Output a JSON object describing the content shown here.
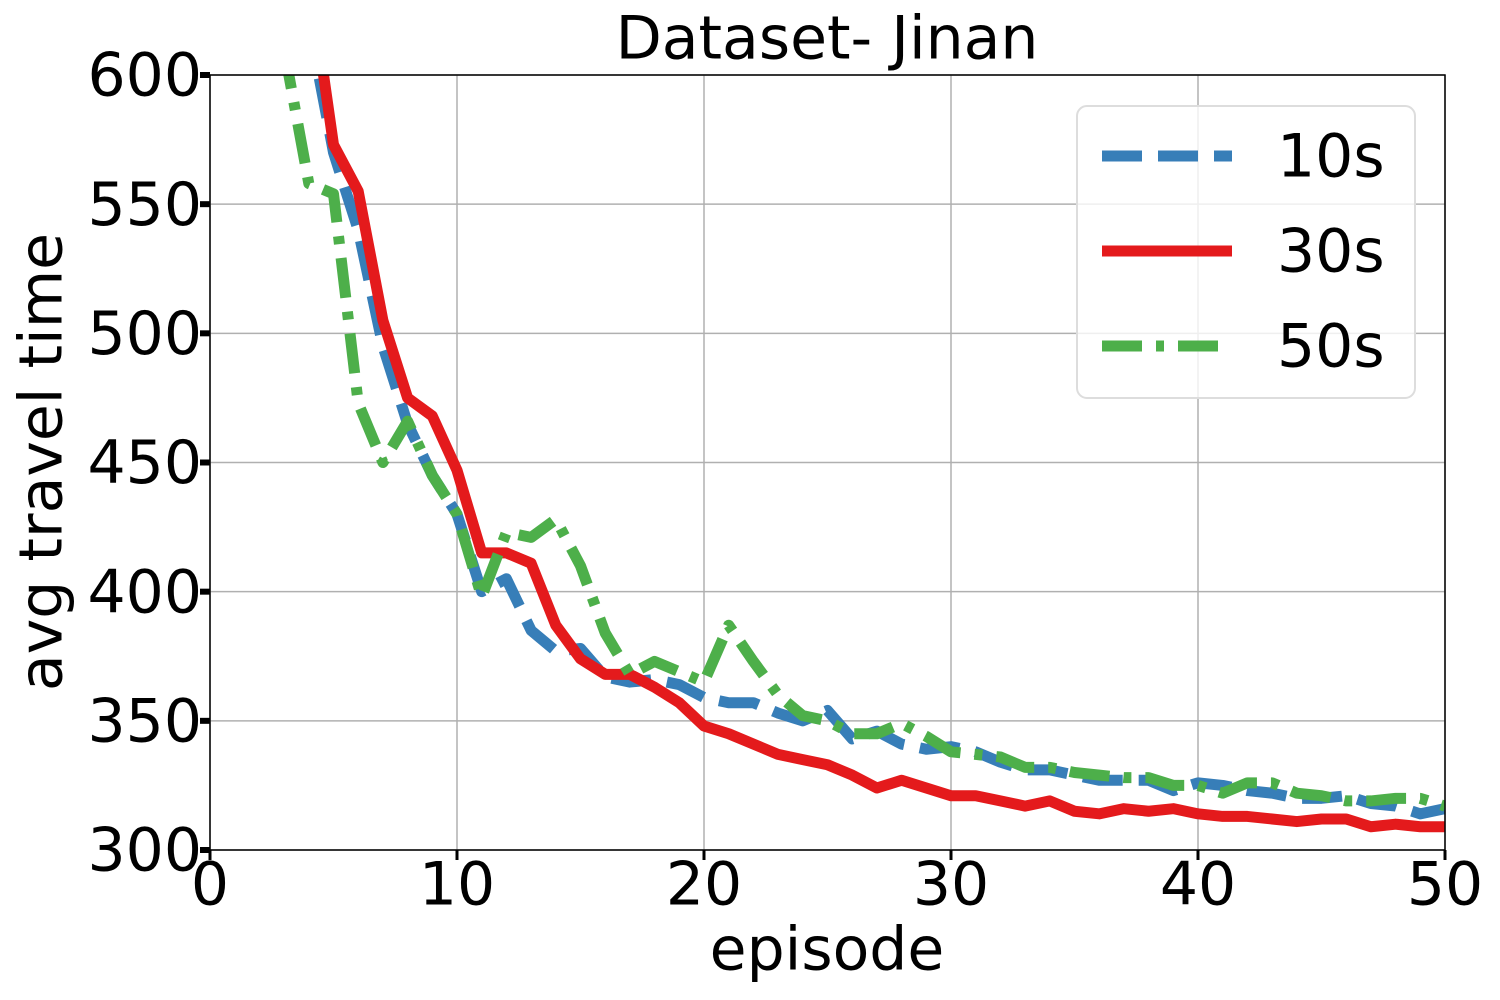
{
  "chart_data": {
    "type": "line",
    "title": "Dataset- Jinan",
    "x_label": "episode",
    "y_label": "avg travel time",
    "x": [
      3,
      4,
      5,
      6,
      7,
      8,
      9,
      10,
      11,
      12,
      13,
      14,
      15,
      16,
      17,
      18,
      19,
      20,
      21,
      22,
      23,
      24,
      25,
      26,
      27,
      28,
      29,
      30,
      31,
      32,
      33,
      34,
      35,
      36,
      37,
      38,
      39,
      40,
      41,
      42,
      43,
      44,
      45,
      46,
      47,
      48,
      49,
      50
    ],
    "series": [
      {
        "name": "10s",
        "color": "#377eb8",
        "linestyle": "--",
        "values": [
          null,
          620,
          570,
          540,
          495,
          465,
          445,
          430,
          400,
          405,
          385,
          377,
          378,
          367,
          365,
          366,
          364,
          359,
          357,
          357,
          353,
          350,
          354,
          343,
          346,
          341,
          339,
          340,
          338,
          334,
          331,
          331,
          329,
          327,
          327,
          327,
          323,
          326,
          325,
          323,
          322,
          320,
          320,
          321,
          318,
          317,
          314,
          316
        ]
      },
      {
        "name": "30s",
        "color": "#e41a1c",
        "linestyle": "-",
        "values": [
          null,
          640,
          573,
          555,
          505,
          475,
          468,
          447,
          415,
          415,
          411,
          387,
          374,
          368,
          368,
          363,
          357,
          348,
          345,
          341,
          337,
          335,
          333,
          329,
          324,
          327,
          324,
          321,
          321,
          319,
          317,
          319,
          315,
          314,
          316,
          315,
          316,
          314,
          313,
          313,
          312,
          311,
          312,
          312,
          309,
          310,
          309,
          309
        ]
      },
      {
        "name": "50s",
        "color": "#4daf4a",
        "linestyle": "-.",
        "values": [
          610,
          558,
          554,
          473,
          450,
          466,
          445,
          430,
          398,
          423,
          421,
          428,
          410,
          384,
          368,
          373,
          369,
          365,
          387,
          373,
          360,
          352,
          350,
          345,
          345,
          349,
          344,
          338,
          337,
          336,
          332,
          332,
          330,
          329,
          328,
          328,
          325,
          325,
          322,
          326,
          326,
          322,
          321,
          319,
          319,
          320,
          320,
          317
        ]
      }
    ],
    "xlim": [
      0,
      50
    ],
    "xticks": [
      0,
      10,
      20,
      30,
      40,
      50
    ],
    "ylim": [
      300,
      600
    ],
    "yticks": [
      300,
      350,
      400,
      450,
      500,
      550,
      600
    ],
    "grid": true,
    "legend": "upper right"
  }
}
